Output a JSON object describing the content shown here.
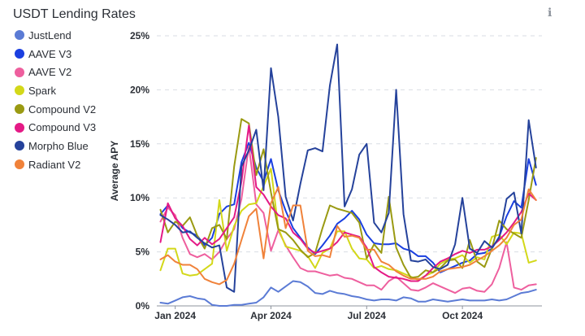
{
  "header": {
    "title": "USDT Lending Rates",
    "info_icon": "info-icon"
  },
  "colors": {
    "grid": "#d9dde3",
    "axis": "#8d939c",
    "text": "#2b2f36"
  },
  "chart_data": {
    "type": "line",
    "title": "USDT Lending Rates",
    "xlabel": "",
    "ylabel": "Average APY",
    "ylim": [
      0,
      25
    ],
    "ytick_values": [
      0,
      5,
      10,
      15,
      20,
      25
    ],
    "yticks": [
      "0%",
      "5%",
      "10%",
      "15%",
      "20%",
      "25%"
    ],
    "xlim": [
      -0.5,
      51.8
    ],
    "xtick_positions": [
      2,
      15,
      28,
      41
    ],
    "xticks": [
      "Jan 2024",
      "Apr 2024",
      "Jul 2024",
      "Oct 2024"
    ],
    "grid": true,
    "legend_placement": "left",
    "series": [
      {
        "name": "JustLend",
        "color": "#5b7bd5",
        "values": [
          0.3,
          0.2,
          0.5,
          0.8,
          0.9,
          0.7,
          0.6,
          0.1,
          0.0,
          0.0,
          0.1,
          0.1,
          0.2,
          0.3,
          0.8,
          1.7,
          1.3,
          1.8,
          2.3,
          2.2,
          1.8,
          1.2,
          1.1,
          1.4,
          1.2,
          1.1,
          0.9,
          0.8,
          0.6,
          0.5,
          0.6,
          0.6,
          0.5,
          0.8,
          0.7,
          0.4,
          0.4,
          0.6,
          0.5,
          0.4,
          0.5,
          0.6,
          0.5,
          0.5,
          0.5,
          0.6,
          0.5,
          0.6,
          0.9,
          1.2,
          1.3,
          1.5
        ]
      },
      {
        "name": "AAVE V3",
        "color": "#1a3fe0",
        "values": [
          8.5,
          9.3,
          8.2,
          7.2,
          6.8,
          6.5,
          5.6,
          6.3,
          8.5,
          9.2,
          9.4,
          13.3,
          15.1,
          12.8,
          11.5,
          13.6,
          10.7,
          8.8,
          7.2,
          6.3,
          5.4,
          4.8,
          5.6,
          6.5,
          7.6,
          8.1,
          8.8,
          8.0,
          6.6,
          5.8,
          5.7,
          5.7,
          5.8,
          5.3,
          5.1,
          4.6,
          4.6,
          4.0,
          3.1,
          3.4,
          3.7,
          4.0,
          4.2,
          4.8,
          4.9,
          5.3,
          6.4,
          8.3,
          9.7,
          9.1,
          13.6,
          11.2
        ]
      },
      {
        "name": "AAVE V2",
        "color": "#ee5f9e",
        "values": [
          7.8,
          9.1,
          8.4,
          6.3,
          4.8,
          4.5,
          4.8,
          4.3,
          5.0,
          6.2,
          7.1,
          9.9,
          14.8,
          9.4,
          8.6,
          5.1,
          7.0,
          5.6,
          4.5,
          3.5,
          3.2,
          3.2,
          3.0,
          2.8,
          2.9,
          2.6,
          2.5,
          2.2,
          1.9,
          1.9,
          1.5,
          2.3,
          2.7,
          2.1,
          1.5,
          1.4,
          1.7,
          2.1,
          1.8,
          1.5,
          1.2,
          1.6,
          1.7,
          1.4,
          1.3,
          2.0,
          3.5,
          5.9,
          1.7,
          1.5,
          1.9,
          2.0
        ]
      },
      {
        "name": "Spark",
        "color": "#d3d819",
        "values": [
          3.3,
          5.3,
          5.3,
          3.0,
          2.8,
          2.9,
          3.4,
          3.9,
          9.8,
          5.1,
          7.4,
          8.8,
          9.4,
          9.5,
          11.1,
          12.7,
          7.2,
          5.5,
          5.3,
          5.1,
          4.6,
          3.5,
          4.9,
          5.3,
          6.9,
          6.9,
          5.3,
          4.4,
          4.3,
          3.5,
          3.7,
          3.4,
          3.3,
          3.0,
          2.7,
          2.4,
          2.8,
          3.1,
          3.9,
          4.3,
          4.4,
          4.7,
          4.0,
          4.5,
          4.3,
          6.4,
          6.6,
          5.7,
          6.8,
          6.7,
          4.0,
          4.2
        ]
      },
      {
        "name": "Compound V2",
        "color": "#9a9a12",
        "values": [
          8.9,
          6.8,
          7.8,
          7.4,
          8.2,
          6.5,
          5.3,
          7.2,
          7.5,
          6.2,
          12.9,
          17.3,
          16.9,
          12.1,
          14.5,
          10.5,
          7.1,
          6.8,
          6.1,
          5.2,
          4.5,
          4.9,
          7.2,
          9.3,
          9.0,
          8.8,
          8.6,
          7.7,
          4.4,
          5.7,
          4.9,
          10.1,
          5.4,
          3.8,
          2.6,
          2.7,
          3.3,
          3.1,
          3.5,
          4.2,
          4.3,
          3.5,
          6.1,
          4.1,
          3.6,
          5.3,
          7.9,
          7.1,
          6.7,
          6.3,
          9.8,
          13.7
        ]
      },
      {
        "name": "Compound V3",
        "color": "#e41a86",
        "values": [
          5.9,
          9.5,
          8.1,
          7.4,
          6.2,
          5.6,
          6.3,
          5.7,
          6.2,
          7.2,
          8.2,
          11.5,
          16.7,
          11.0,
          10.3,
          9.2,
          8.4,
          8.1,
          6.8,
          6.2,
          5.3,
          4.9,
          5.1,
          5.3,
          5.9,
          6.8,
          6.6,
          6.4,
          5.4,
          3.6,
          3.1,
          2.7,
          2.6,
          2.5,
          2.3,
          2.3,
          2.8,
          3.5,
          4.1,
          4.4,
          4.8,
          5.1,
          4.9,
          5.2,
          5.2,
          5.5,
          6.1,
          6.8,
          7.7,
          8.7,
          10.4,
          9.8
        ]
      },
      {
        "name": "Morpho Blue",
        "color": "#25429b",
        "values": [
          8.4,
          8.0,
          7.5,
          6.8,
          6.9,
          6.3,
          5.8,
          5.4,
          5.6,
          1.7,
          1.3,
          12.9,
          14.4,
          16.3,
          10.7,
          22.0,
          17.5,
          10.1,
          7.9,
          11.3,
          14.4,
          14.6,
          14.3,
          20.4,
          24.2,
          9.2,
          10.8,
          14.0,
          15.0,
          7.7,
          6.8,
          8.6,
          20.0,
          8.5,
          4.2,
          4.1,
          4.3,
          3.6,
          3.4,
          3.8,
          5.7,
          10.0,
          5.3,
          4.9,
          6.0,
          5.4,
          6.3,
          9.9,
          10.5,
          6.7,
          17.2,
          12.8
        ]
      },
      {
        "name": "Radiant V2",
        "color": "#f0823a",
        "values": [
          4.3,
          4.7,
          4.1,
          3.8,
          3.8,
          3.4,
          2.5,
          2.2,
          2.0,
          2.4,
          3.9,
          6.1,
          8.3,
          9.0,
          4.4,
          9.5,
          11.0,
          7.2,
          9.3,
          9.3,
          5.1,
          4.6,
          4.7,
          4.5,
          7.4,
          6.4,
          6.5,
          6.3,
          5.2,
          5.2,
          4.1,
          3.8,
          3.2,
          2.8,
          2.5,
          2.5,
          2.5,
          2.7,
          3.2,
          3.4,
          3.5,
          3.6,
          3.8,
          4.2,
          4.6,
          5.1,
          5.6,
          6.3,
          7.5,
          8.0,
          10.8,
          9.8
        ]
      }
    ]
  }
}
